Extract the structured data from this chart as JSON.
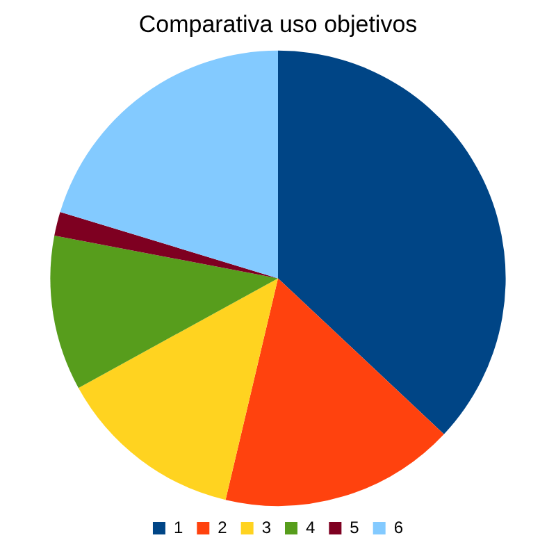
{
  "chart_data": {
    "type": "pie",
    "title": "Comparativa uso objetivos",
    "categories": [
      "1",
      "2",
      "3",
      "4",
      "5",
      "6"
    ],
    "values": [
      37,
      16.7,
      13.3,
      11,
      1.7,
      20.3
    ],
    "colors": [
      "#004586",
      "#ff420e",
      "#ffd320",
      "#579d1c",
      "#7e0021",
      "#83caff"
    ],
    "legend": "bottom"
  }
}
